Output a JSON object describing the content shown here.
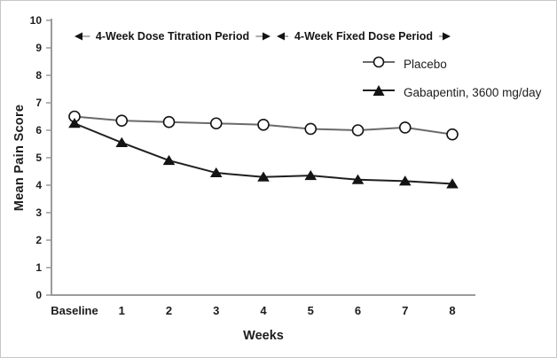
{
  "chart_data": {
    "type": "line",
    "title": "",
    "xlabel": "Weeks",
    "ylabel": "Mean Pain Score",
    "categories": [
      "Baseline",
      "1",
      "2",
      "3",
      "4",
      "5",
      "6",
      "7",
      "8"
    ],
    "ylim": [
      0,
      10
    ],
    "ytick_step": 1,
    "grid": false,
    "legend_position": "upper-right",
    "series": [
      {
        "name": "Placebo",
        "marker": "circle-open",
        "color": "#6a6a6a",
        "values": [
          6.5,
          6.35,
          6.3,
          6.25,
          6.2,
          6.05,
          6.0,
          6.1,
          5.85
        ]
      },
      {
        "name": "Gabapentin, 3600 mg/day",
        "marker": "triangle-filled",
        "color": "#1f1f1f",
        "values": [
          6.25,
          5.55,
          4.9,
          4.45,
          4.3,
          4.35,
          4.2,
          4.15,
          4.05
        ]
      }
    ],
    "annotations": [
      {
        "label": "4-Week Dose Titration Period",
        "from_category": "Baseline",
        "to_category": "4"
      },
      {
        "label": "4-Week Fixed Dose Period",
        "from_category": "4",
        "to_category": "8"
      }
    ],
    "colors": {
      "axis": "#9b9b9b",
      "text": "#1c1c1c",
      "arrow_line": "#a3a3a3",
      "arrowhead": "#141414",
      "marker_stroke": "#141414",
      "marker_fill": "#ffffff"
    }
  }
}
